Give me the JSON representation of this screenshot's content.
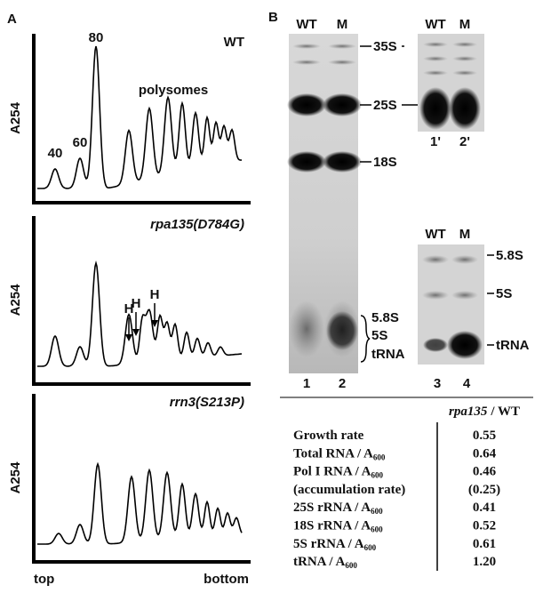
{
  "panel_a": {
    "label": "A",
    "y_label": "A254",
    "traces": [
      {
        "title": "WT",
        "annotations": [
          "40",
          "60",
          "80",
          "polysomes"
        ]
      },
      {
        "title": "rpa135(D784G)",
        "annotations": [
          "H",
          "H",
          "H"
        ]
      },
      {
        "title": "rrn3(S213P)",
        "annotations": []
      }
    ],
    "x_start": "top",
    "x_end": "bottom"
  },
  "panel_b": {
    "label": "B",
    "gel_main": {
      "lanes": [
        "WT",
        "M"
      ],
      "lane_numbers": [
        "1",
        "2"
      ],
      "bands": [
        "35S",
        "25S",
        "18S"
      ],
      "bracket_bands": [
        "5.8S",
        "5S",
        "tRNA"
      ]
    },
    "gel_inset_top": {
      "lanes": [
        "WT",
        "M"
      ],
      "lane_numbers": [
        "1'",
        "2'"
      ]
    },
    "gel_inset_bottom": {
      "lanes": [
        "WT",
        "M"
      ],
      "lane_numbers": [
        "3",
        "4"
      ],
      "bands": [
        "5.8S",
        "5S",
        "tRNA"
      ]
    }
  },
  "table": {
    "header": {
      "italic": "rpa135",
      "rest": "/ WT"
    },
    "rows": [
      {
        "label": "Growth rate",
        "value": "0.55"
      },
      {
        "label": "Total RNA / A",
        "sub": "600",
        "value": "0.64"
      },
      {
        "label": "Pol I RNA / A",
        "sub": "600",
        "value": "0.46"
      },
      {
        "label": "(accumulation rate)",
        "value": "(0.25)"
      },
      {
        "label": "25S rRNA / A",
        "sub": "600",
        "value": "0.41"
      },
      {
        "label": "18S rRNA / A",
        "sub": "600",
        "value": "0.52"
      },
      {
        "label": "5S rRNA / A",
        "sub": "600",
        "value": "0.61"
      },
      {
        "label": "tRNA / A",
        "sub": "600",
        "value": "1.20"
      }
    ]
  }
}
